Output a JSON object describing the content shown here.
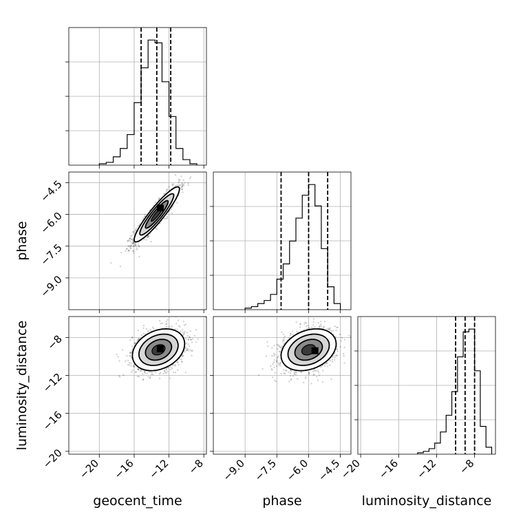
{
  "chart_data": {
    "type": "corner",
    "parameters": [
      "geocent_time",
      "phase",
      "luminosity_distance"
    ],
    "axis_labels": {
      "x": [
        "geocent_time",
        "phase",
        "luminosity_distance"
      ],
      "y": [
        "",
        "phase",
        "luminosity_distance"
      ]
    },
    "ranges": {
      "geocent_time": [
        -23.5,
        -7.7
      ],
      "phase": [
        -10.5,
        -4.0
      ],
      "luminosity_distance": [
        -20.3,
        -5.8
      ]
    },
    "ticks": {
      "geocent_time": [
        -20,
        -16,
        -12,
        -8
      ],
      "phase": [
        -9.0,
        -7.5,
        -6.0,
        -4.5
      ],
      "luminosity_distance": [
        -20,
        -16,
        -12,
        -8
      ]
    },
    "tick_labels": {
      "geocent_time": [
        "−20",
        "−16",
        "−12",
        "−8"
      ],
      "phase": [
        "−9.0",
        "−7.5",
        "−6.0",
        "−4.5"
      ],
      "luminosity_distance": [
        "−20",
        "−16",
        "−12",
        "−8"
      ]
    },
    "grid": true,
    "histograms": [
      {
        "param": "geocent_time",
        "bin_edges": [
          -20.0,
          -19.2,
          -18.4,
          -17.6,
          -16.8,
          -16.0,
          -15.2,
          -14.4,
          -13.6,
          -12.8,
          -12.0,
          -11.2,
          -10.4,
          -9.6,
          -8.8
        ],
        "counts": [
          1,
          2,
          6,
          12,
          22,
          45,
          70,
          90,
          88,
          60,
          35,
          12,
          4,
          1
        ],
        "quantiles": [
          -15.2,
          -13.4,
          -11.8
        ]
      },
      {
        "param": "phase",
        "bin_edges": [
          -9.0,
          -8.7,
          -8.4,
          -8.1,
          -7.8,
          -7.5,
          -7.2,
          -6.9,
          -6.6,
          -6.3,
          -6.0,
          -5.7,
          -5.4,
          -5.1,
          -4.8,
          -4.5
        ],
        "counts": [
          1,
          2,
          4,
          6,
          10,
          20,
          30,
          45,
          60,
          75,
          82,
          68,
          40,
          15,
          4
        ],
        "quantiles": [
          -7.3,
          -6.0,
          -5.1
        ]
      },
      {
        "param": "luminosity_distance",
        "bin_edges": [
          -14.0,
          -13.4,
          -12.8,
          -12.2,
          -11.6,
          -11.0,
          -10.4,
          -9.8,
          -9.2,
          -8.6,
          -8.0,
          -7.4,
          -6.8,
          -6.2
        ],
        "counts": [
          1,
          2,
          4,
          8,
          16,
          28,
          45,
          70,
          88,
          90,
          60,
          20,
          5
        ],
        "quantiles": [
          -10.0,
          -9.0,
          -8.0
        ]
      }
    ],
    "scatter_panels": [
      {
        "x_param": "geocent_time",
        "y_param": "phase",
        "mean": [
          -13.4,
          -6.0
        ],
        "std": [
          1.3,
          0.65
        ],
        "correlation": 0.92,
        "peak": [
          -13.0,
          -5.7
        ]
      },
      {
        "x_param": "geocent_time",
        "y_param": "luminosity_distance",
        "mean": [
          -13.2,
          -9.3
        ],
        "std": [
          1.5,
          1.1
        ],
        "correlation": 0.28,
        "peak": [
          -13.0,
          -9.2
        ]
      },
      {
        "x_param": "phase",
        "y_param": "luminosity_distance",
        "mean": [
          -6.0,
          -9.3
        ],
        "std": [
          0.65,
          1.1
        ],
        "correlation": 0.28,
        "peak": [
          -5.7,
          -9.4
        ]
      }
    ],
    "contour_levels_sigma": [
      0.5,
      1.0,
      1.5,
      2.0
    ]
  }
}
